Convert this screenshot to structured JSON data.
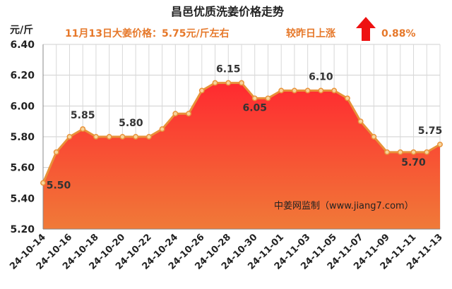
{
  "chart_data": {
    "type": "area",
    "title": "昌邑优质洗姜价格走势",
    "ylabel": "元/斤",
    "ylim": [
      5.2,
      6.4
    ],
    "yticks": [
      "5.20",
      "5.40",
      "5.60",
      "5.80",
      "6.00",
      "6.20",
      "6.40"
    ],
    "x": [
      "24-10-14",
      "24-10-15",
      "24-10-16",
      "24-10-17",
      "24-10-18",
      "24-10-19",
      "24-10-20",
      "24-10-21",
      "24-10-22",
      "24-10-23",
      "24-10-24",
      "24-10-25",
      "24-10-26",
      "24-10-27",
      "24-10-28",
      "24-10-29",
      "24-10-30",
      "24-10-31",
      "24-11-01",
      "24-11-02",
      "24-11-03",
      "24-11-04",
      "24-11-05",
      "24-11-06",
      "24-11-07",
      "24-11-08",
      "24-11-09",
      "24-11-10",
      "24-11-11",
      "24-11-12",
      "24-11-13"
    ],
    "xtick_labels": [
      "24-10-14",
      "24-10-16",
      "24-10-18",
      "24-10-20",
      "24-10-22",
      "24-10-24",
      "24-10-26",
      "24-10-28",
      "24-10-30",
      "24-11-01",
      "24-11-03",
      "24-11-05",
      "24-11-07",
      "24-11-09",
      "24-11-11",
      "24-11-13"
    ],
    "values": [
      5.5,
      5.7,
      5.8,
      5.85,
      5.8,
      5.8,
      5.8,
      5.8,
      5.8,
      5.85,
      5.95,
      5.95,
      6.1,
      6.15,
      6.15,
      6.15,
      6.05,
      6.05,
      6.1,
      6.1,
      6.1,
      6.1,
      6.1,
      6.05,
      5.9,
      5.8,
      5.7,
      5.7,
      5.7,
      5.7,
      5.75
    ],
    "data_labels": [
      {
        "index": 0,
        "text": "5.50"
      },
      {
        "index": 3,
        "text": "5.85"
      },
      {
        "index": 6,
        "text": "5.80"
      },
      {
        "index": 14,
        "text": "6.15"
      },
      {
        "index": 16,
        "text": "6.05"
      },
      {
        "index": 21,
        "text": "6.10"
      },
      {
        "index": 28,
        "text": "5.70"
      },
      {
        "index": 30,
        "text": "5.75"
      }
    ],
    "grid": true,
    "colors": {
      "line": "#e8923a",
      "marker_fill": "#f6d49c",
      "fill_top": "#ff2a30",
      "fill_bottom": "#f07a38",
      "arrow": "#ee1111",
      "accent_text": "#e6782a"
    }
  },
  "header": {
    "headline": "11月13日大姜价格：5.75元/斤左右",
    "change_label": "较昨日上涨",
    "change_value": "0.88%",
    "change_direction": "up-arrow-icon"
  },
  "watermark": "中姜网监制（www.jiang7.com）"
}
